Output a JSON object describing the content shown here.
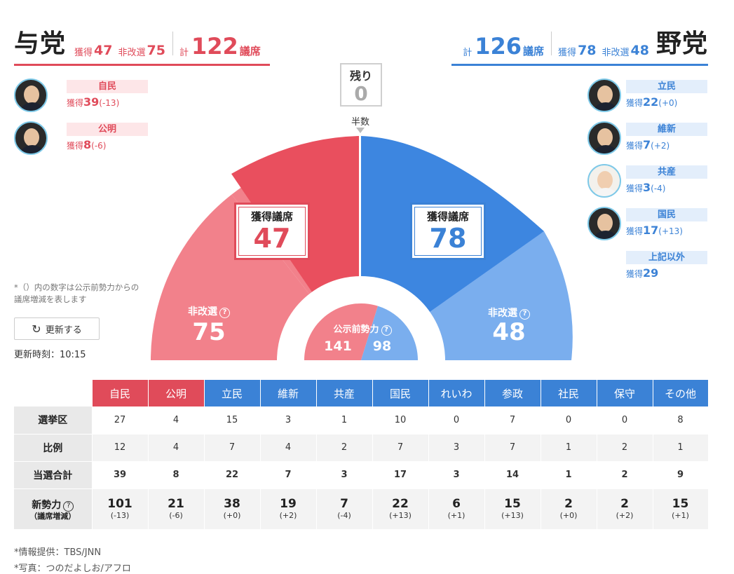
{
  "ruling": {
    "name": "与党",
    "won_label": "獲得",
    "won": "47",
    "not_up_label": "非改選",
    "not_up": "75",
    "total_label": "計",
    "total": "122",
    "seat_label": "議席",
    "color": "#e04b5a",
    "parties": [
      {
        "name": "自民",
        "gain_label": "獲得",
        "gain": "39",
        "delta": "(-13)"
      },
      {
        "name": "公明",
        "gain_label": "獲得",
        "gain": "8",
        "delta": "(-6)"
      }
    ]
  },
  "opposition": {
    "name": "野党",
    "won_label": "獲得",
    "won": "78",
    "not_up_label": "非改選",
    "not_up": "48",
    "total_label": "計",
    "total": "126",
    "seat_label": "議席",
    "color": "#3b82d6",
    "parties": [
      {
        "name": "立民",
        "gain_label": "獲得",
        "gain": "22",
        "delta": "(+0)"
      },
      {
        "name": "維新",
        "gain_label": "獲得",
        "gain": "7",
        "delta": "(+2)"
      },
      {
        "name": "共産",
        "gain_label": "獲得",
        "gain": "3",
        "delta": "(-4)"
      },
      {
        "name": "国民",
        "gain_label": "獲得",
        "gain": "17",
        "delta": "(+13)"
      },
      {
        "name": "上記以外",
        "gain_label": "獲得",
        "gain": "29",
        "delta": ""
      }
    ]
  },
  "chart": {
    "remaining_label": "残り",
    "remaining": "0",
    "half_label": "半数",
    "won_seats_label": "獲得議席",
    "ruling_won": "47",
    "opposition_won": "78",
    "not_up_label": "非改選",
    "ruling_not_up": "75",
    "opposition_not_up": "48",
    "pre_label": "公示前勢力",
    "ruling_pre": "141",
    "opposition_pre": "98",
    "help_glyph": "?"
  },
  "note": {
    "text1": "*（）内の数字は公示前勢力からの",
    "text2": "議席増減を表します"
  },
  "refresh": {
    "label": "更新する",
    "icon": "refresh-icon"
  },
  "updated": {
    "label": "更新時刻：10:15"
  },
  "table": {
    "headers": [
      {
        "name": "自民",
        "color": "#e04b5a"
      },
      {
        "name": "公明",
        "color": "#e04b5a"
      },
      {
        "name": "立民",
        "color": "#3b82d6"
      },
      {
        "name": "維新",
        "color": "#3b82d6"
      },
      {
        "name": "共産",
        "color": "#3b82d6"
      },
      {
        "name": "国民",
        "color": "#3b82d6"
      },
      {
        "name": "れいわ",
        "color": "#3b82d6"
      },
      {
        "name": "参政",
        "color": "#3b82d6"
      },
      {
        "name": "社民",
        "color": "#3b82d6"
      },
      {
        "name": "保守",
        "color": "#3b82d6"
      },
      {
        "name": "その他",
        "color": "#3b82d6"
      }
    ],
    "rows": [
      {
        "label": "選挙区",
        "values": [
          "27",
          "4",
          "15",
          "3",
          "1",
          "10",
          "0",
          "7",
          "0",
          "0",
          "8"
        ]
      },
      {
        "label": "比例",
        "values": [
          "12",
          "4",
          "7",
          "4",
          "2",
          "7",
          "3",
          "7",
          "1",
          "2",
          "1"
        ]
      },
      {
        "label": "当選合計",
        "values": [
          "39",
          "8",
          "22",
          "7",
          "3",
          "17",
          "3",
          "14",
          "1",
          "2",
          "9"
        ]
      }
    ],
    "strength": {
      "label": "新勢力",
      "sublabel": "（議席増減）",
      "help_glyph": "?",
      "values": [
        "101",
        "21",
        "38",
        "19",
        "7",
        "22",
        "6",
        "15",
        "2",
        "2",
        "15"
      ],
      "deltas": [
        "(-13)",
        "(-6)",
        "(+0)",
        "(+2)",
        "(-4)",
        "(+13)",
        "(+1)",
        "(+13)",
        "(+0)",
        "(+2)",
        "(+1)"
      ]
    }
  },
  "footnotes": {
    "source": "*情報提供：TBS/JNN",
    "photo": "*写真：つのだよしお/アフロ"
  }
}
